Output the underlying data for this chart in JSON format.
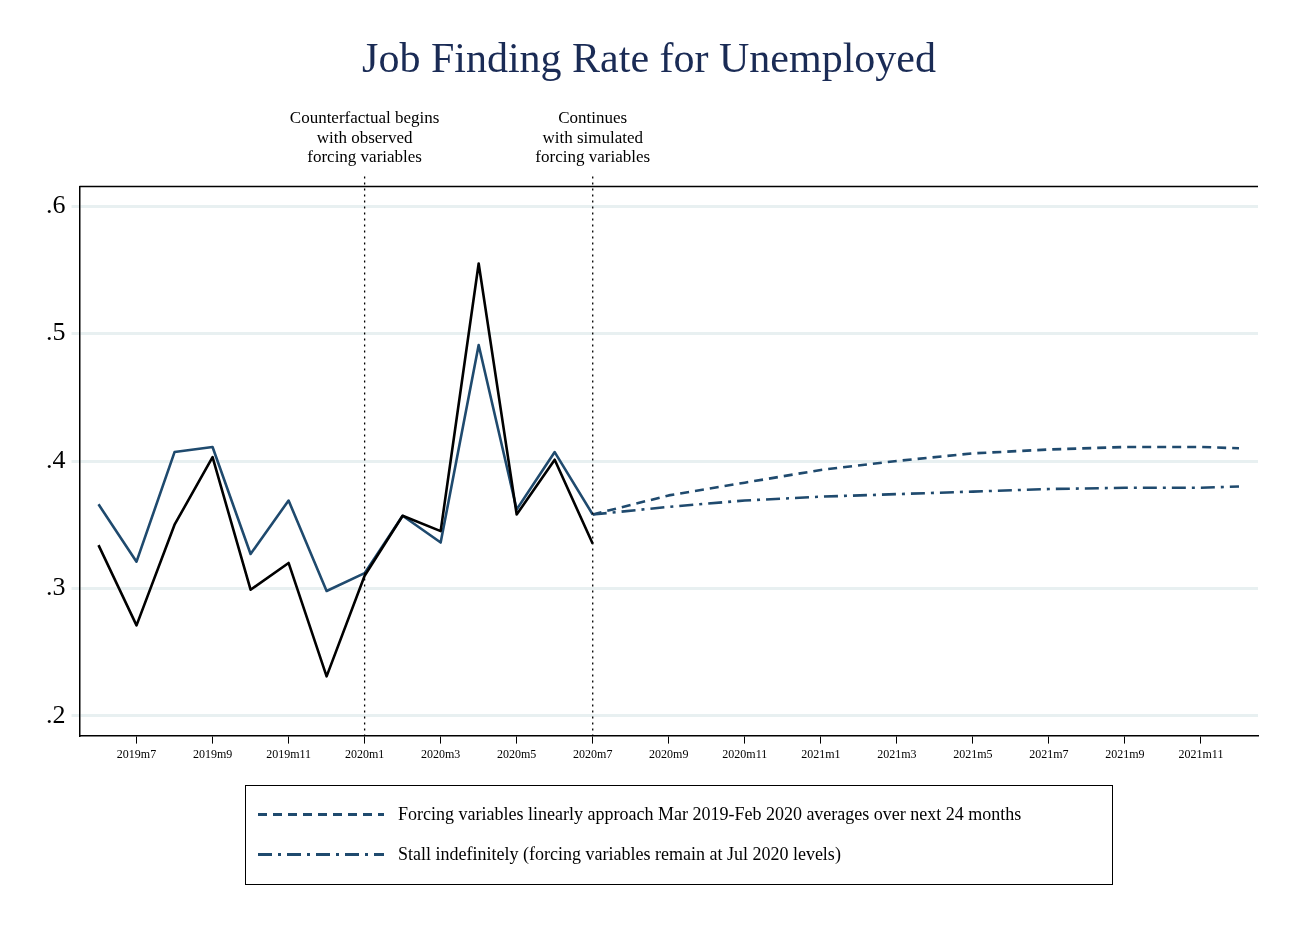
{
  "chart_data": {
    "type": "line",
    "title": "Job Finding Rate for Unemployed",
    "categories": [
      null,
      "2019m7",
      null,
      "2019m9",
      null,
      "2019m11",
      null,
      "2020m1",
      null,
      "2020m3",
      null,
      "2020m5",
      null,
      "2020m7",
      null,
      "2020m9",
      null,
      "2020m11",
      null,
      "2021m1",
      null,
      "2021m3",
      null,
      "2021m5",
      null,
      "2021m7",
      null,
      "2021m9",
      null,
      "2021m11",
      null
    ],
    "series": [
      {
        "color": "#000000",
        "line_style": "solid",
        "values": [
          0.334,
          0.271,
          0.35,
          0.403,
          0.299,
          0.32,
          0.231,
          0.31,
          0.357,
          0.345,
          0.555,
          0.358,
          0.401,
          0.335,
          null,
          null,
          null,
          null,
          null,
          null,
          null,
          null,
          null,
          null,
          null,
          null,
          null,
          null,
          null,
          null,
          null
        ]
      },
      {
        "color": "#1f4a6e",
        "line_style": "solid",
        "values": [
          0.366,
          0.321,
          0.407,
          0.411,
          0.327,
          0.369,
          0.298,
          0.312,
          0.357,
          0.336,
          0.491,
          0.362,
          0.407,
          0.358,
          null,
          null,
          null,
          null,
          null,
          null,
          null,
          null,
          null,
          null,
          null,
          null,
          null,
          null,
          null,
          null,
          null
        ]
      },
      {
        "name": "Forcing variables linearly approach Mar 2019-Feb 2020 averages over next 24 months",
        "color": "#1f4a6e",
        "line_style": "dashed",
        "values": [
          null,
          null,
          null,
          null,
          null,
          null,
          null,
          null,
          null,
          null,
          null,
          null,
          null,
          0.358,
          null,
          0.373,
          null,
          0.383,
          null,
          0.393,
          null,
          0.4,
          null,
          0.406,
          null,
          0.409,
          null,
          0.411,
          null,
          0.411,
          0.41
        ]
      },
      {
        "name": "Stall indefinitely (forcing variables remain at Jul 2020 levels)",
        "color": "#1f4a6e",
        "line_style": "dashdot",
        "values": [
          null,
          null,
          null,
          null,
          null,
          null,
          null,
          null,
          null,
          null,
          null,
          null,
          null,
          0.358,
          null,
          0.364,
          null,
          0.369,
          null,
          0.372,
          null,
          0.374,
          null,
          0.376,
          null,
          0.378,
          null,
          0.379,
          null,
          0.379,
          0.38
        ]
      }
    ],
    "ylim": [
      0.1845,
      0.6155
    ],
    "yticks": [
      {
        "value": 0.2,
        "label": ".2"
      },
      {
        "value": 0.3,
        "label": ".3"
      },
      {
        "value": 0.4,
        "label": ".4"
      },
      {
        "value": 0.5,
        "label": ".5"
      },
      {
        "value": 0.6,
        "label": ".6"
      }
    ],
    "ref_lines": [
      {
        "axis": "x",
        "value": "2020m1",
        "label": "Counterfactual begins\nwith observed\nforcing variables",
        "color": "#000000",
        "line_style": "dotted"
      },
      {
        "axis": "x",
        "value": "2020m7",
        "label": "Continues\nwith simulated\nforcing variables",
        "color": "#000000",
        "line_style": "dotted"
      }
    ],
    "grid": "y",
    "legend": "bottom",
    "marker": "none"
  }
}
